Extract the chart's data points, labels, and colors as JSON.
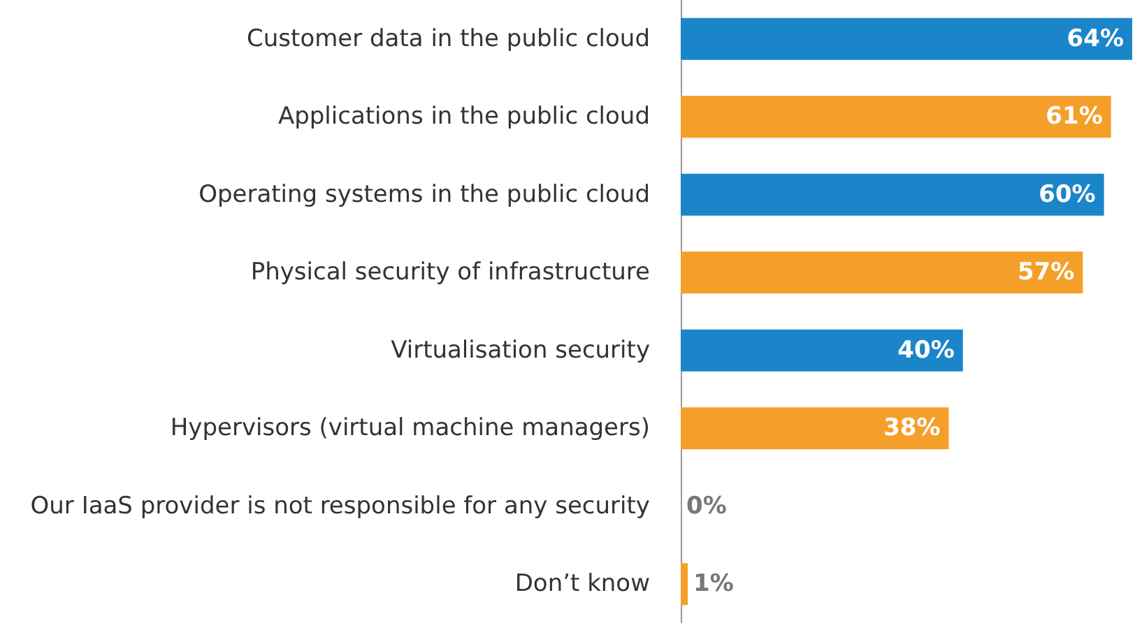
{
  "chart_data": {
    "type": "bar",
    "orientation": "horizontal",
    "categories": [
      "Customer data in the public cloud",
      "Applications in the public cloud",
      "Operating systems in the public cloud",
      "Physical security of infrastructure",
      "Virtualisation security",
      "Hypervisors (virtual machine managers)",
      "Our IaaS provider is not responsible for any security",
      "Don’t know"
    ],
    "values": [
      64,
      61,
      60,
      57,
      40,
      38,
      0,
      1
    ],
    "colors": [
      "#1b85c9",
      "#f59f2b",
      "#1b85c9",
      "#f59f2b",
      "#1b85c9",
      "#f59f2b",
      "#1b85c9",
      "#f59f2b"
    ],
    "value_labels": [
      "64%",
      "61%",
      "60%",
      "57%",
      "40%",
      "38%",
      "0%",
      "1%"
    ],
    "grid": false
  }
}
